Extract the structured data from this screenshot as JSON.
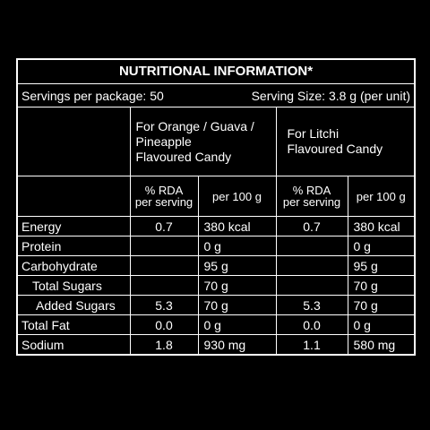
{
  "title": "NUTRITIONAL INFORMATION*",
  "servings_per_package": "Servings per package: 50",
  "serving_size": "Serving Size: 3.8 g (per unit)",
  "products": [
    {
      "lines": [
        "For Orange / Guava /",
        "Pineapple",
        "Flavoured Candy"
      ]
    },
    {
      "lines": [
        "For Litchi",
        "Flavoured Candy"
      ]
    }
  ],
  "subheaders": [
    {
      "lines": [
        "% RDA",
        "per serving"
      ]
    },
    {
      "lines": [
        "per 100 g"
      ]
    },
    {
      "lines": [
        "% RDA",
        "per serving"
      ]
    },
    {
      "lines": [
        "per 100 g"
      ]
    }
  ],
  "rows": [
    [
      "Energy",
      "0.7",
      "380 kcal",
      "0.7",
      "380 kcal"
    ],
    [
      "Protein",
      null,
      "0 g",
      null,
      "0 g"
    ],
    [
      "Carbohydrate",
      null,
      "95 g",
      null,
      "95 g"
    ],
    [
      "Total Sugars",
      null,
      "70 g",
      null,
      "70 g"
    ],
    [
      "Added Sugars",
      "5.3",
      "70 g",
      "5.3",
      "70 g"
    ],
    [
      "Total Fat",
      "0.0",
      "0 g",
      "0.0",
      "0 g"
    ],
    [
      "Sodium",
      "1.8",
      "930 mg",
      "1.1",
      "580 mg"
    ]
  ]
}
